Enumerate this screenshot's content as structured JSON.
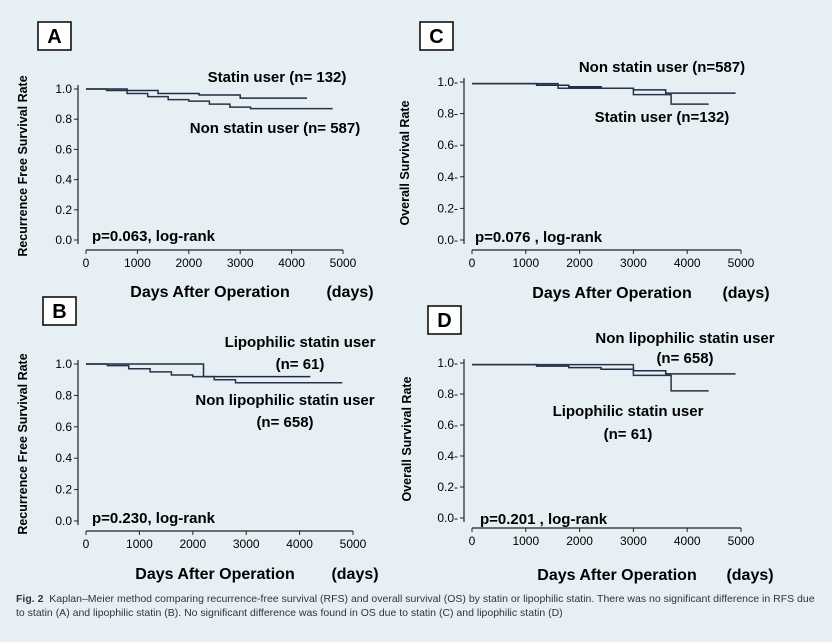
{
  "chart_data": [
    {
      "panel": "A",
      "type": "line",
      "step": true,
      "ylabel": "Recurrence Free Survival Rate",
      "xlabel": "Days After Operation",
      "xunit": "(days)",
      "xticks": [
        0,
        1000,
        2000,
        3000,
        4000,
        5000
      ],
      "yticks": [
        "0.0",
        "0.2",
        "0.4",
        "0.6",
        "0.8",
        "1.0"
      ],
      "xlim": [
        0,
        5000
      ],
      "ylim": [
        0,
        1.0
      ],
      "annotation": "p=0.063, log-rank",
      "series": [
        {
          "name": "Statin user (n= 132)",
          "labels": [
            "Statin user (n= 132)"
          ],
          "x": [
            0,
            800,
            1400,
            2200,
            3000,
            4300
          ],
          "y": [
            1.0,
            0.99,
            0.97,
            0.96,
            0.94,
            0.94
          ]
        },
        {
          "name": "Non statin user (n= 587)",
          "labels": [
            "Non statin user (n= 587)"
          ],
          "x": [
            0,
            400,
            800,
            1200,
            1600,
            2000,
            2400,
            2800,
            3200,
            4800
          ],
          "y": [
            1.0,
            0.99,
            0.97,
            0.95,
            0.93,
            0.92,
            0.9,
            0.88,
            0.87,
            0.87
          ]
        }
      ]
    },
    {
      "panel": "B",
      "type": "line",
      "step": true,
      "ylabel": "Recurrence Free Survival Rate",
      "xlabel": "Days After Operation",
      "xunit": "(days)",
      "xticks": [
        0,
        1000,
        2000,
        3000,
        4000,
        5000
      ],
      "yticks": [
        "0.0",
        "0.2",
        "0.4",
        "0.6",
        "0.8",
        "1.0"
      ],
      "xlim": [
        0,
        5000
      ],
      "ylim": [
        0,
        1.0
      ],
      "annotation": "p=0.230, log-rank",
      "series": [
        {
          "name": "Lipophilic statin user (n= 61)",
          "labels": [
            "Lipophilic statin user",
            "(n= 61)"
          ],
          "x": [
            0,
            2200,
            3000,
            4200
          ],
          "y": [
            1.0,
            0.92,
            0.92,
            0.92
          ]
        },
        {
          "name": "Non lipophilic statin user (n= 658)",
          "labels": [
            "Non lipophilic statin user",
            "(n= 658)"
          ],
          "x": [
            0,
            400,
            800,
            1200,
            1600,
            2000,
            2400,
            2800,
            4800
          ],
          "y": [
            1.0,
            0.99,
            0.97,
            0.95,
            0.93,
            0.92,
            0.9,
            0.88,
            0.88
          ]
        }
      ]
    },
    {
      "panel": "C",
      "type": "line",
      "step": true,
      "ylabel": "Overall  Survival Rate",
      "xlabel": "Days After Operation",
      "xunit": "(days)",
      "xticks": [
        0,
        1000,
        2000,
        3000,
        4000,
        5000
      ],
      "yticks": [
        "0.0-",
        "0.2-",
        "0.4-",
        "0.6-",
        "0.8-",
        "1.0-"
      ],
      "xlim": [
        0,
        5000
      ],
      "ylim": [
        0,
        1.0
      ],
      "annotation": "p=0.076 , log-rank",
      "series": [
        {
          "name": "Non statin user (n=587)",
          "labels": [
            "Non statin user (n=587)"
          ],
          "x": [
            0,
            600,
            1200,
            1800,
            2400,
            3000,
            3600,
            4900
          ],
          "y": [
            0.99,
            0.99,
            0.98,
            0.97,
            0.96,
            0.95,
            0.93,
            0.93
          ]
        },
        {
          "name": "Statin user (n=132)",
          "labels": [
            "Statin user (n=132)"
          ],
          "x": [
            0,
            1600,
            3000,
            3700,
            4400
          ],
          "y": [
            0.99,
            0.96,
            0.92,
            0.86,
            0.86
          ]
        }
      ]
    },
    {
      "panel": "D",
      "type": "line",
      "step": true,
      "ylabel": "Overall  Survival Rate",
      "xlabel": "Days After Operation",
      "xunit": "(days)",
      "xticks": [
        0,
        1000,
        2000,
        3000,
        4000,
        5000
      ],
      "yticks": [
        "0.0-",
        "0.2-",
        "0.4-",
        "0.6-",
        "0.8-",
        "1.0-"
      ],
      "xlim": [
        0,
        5000
      ],
      "ylim": [
        0,
        1.0
      ],
      "annotation": "p=0.201 , log-rank",
      "series": [
        {
          "name": "Non lipophilic statin user (n= 658)",
          "labels": [
            "Non lipophilic statin user",
            "(n= 658)"
          ],
          "x": [
            0,
            600,
            1200,
            1800,
            2400,
            3000,
            3600,
            4900
          ],
          "y": [
            0.99,
            0.99,
            0.98,
            0.97,
            0.96,
            0.95,
            0.93,
            0.93
          ]
        },
        {
          "name": "Lipophilic statin user (n= 61)",
          "labels": [
            "Lipophilic statin user",
            "(n= 61)"
          ],
          "x": [
            0,
            3000,
            3700,
            4400
          ],
          "y": [
            0.99,
            0.92,
            0.82,
            0.82
          ]
        }
      ]
    }
  ],
  "caption": {
    "label": "Fig. 2",
    "text": "Kaplan–Meier method comparing recurrence-free survival (RFS) and overall survival (OS) by statin or lipophilic statin. There was no significant difference in RFS due to statin (A) and lipophilic statin (B). No significant difference was found in OS due to statin (C) and lipophilic statin (D)"
  }
}
